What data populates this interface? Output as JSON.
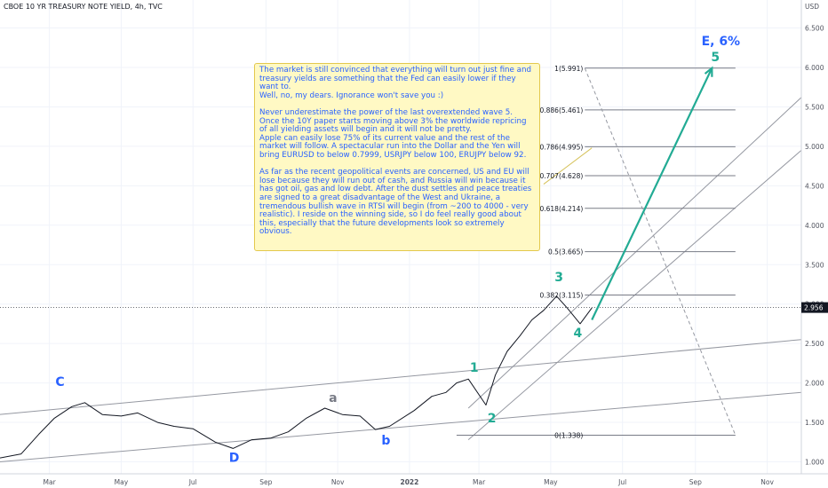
{
  "header": {
    "title": "CBOE 10 YR TREASURY NOTE YIELD, 4h, TVC"
  },
  "price_axis": {
    "currency": "USD",
    "ticks": [
      "6.500",
      "6.000",
      "5.500",
      "5.000",
      "4.500",
      "4.000",
      "3.500",
      "3.000",
      "2.500",
      "2.000",
      "1.500",
      "1.000"
    ],
    "current_price": "2.956"
  },
  "time_axis": {
    "labels": [
      "Mar",
      "May",
      "Jul",
      "Sep",
      "Nov",
      "2022",
      "Mar",
      "May",
      "Jul",
      "Sep",
      "Nov"
    ]
  },
  "note": {
    "text": "The market is still convinced that everything will turn out just fine and treasury yields are something that the Fed can easily lower if they want to.\nWell, no, my dears. Ignorance won't save you :)\n\nNever underestimate the power of the last overextended wave 5. Once the 10Y paper starts moving above 3% the worldwide repricing of all yielding assets will begin and it will not be pretty.\nApple can easily lose 75% of its current value and the rest of the market will follow. A spectacular run into the Dollar and the Yen will bring EURUSD to below 0.7999, USRJPY below 100, ERUJPY below 92.\n\nAs far as the recent geopolitical events are concerned, US and EU will lose because they will run out of cash, and Russia will win because it has got oil, gas and low debt. After the dust settles and peace treaties are signed to a great disadvantage of the West and Ukraine, a tremendous bullish wave in RTSI will begin (from ~200 to 4000 - very realistic). I reside on the winning side, so I do feel really good about this, especially that the future developments look so extremely obvious."
  },
  "target_label": "E, 6%",
  "fib_levels": [
    {
      "ratio": "1",
      "label": "1(5.991)",
      "value": 5.991
    },
    {
      "ratio": "0.886",
      "label": "0.886(5.461)",
      "value": 5.461
    },
    {
      "ratio": "0.786",
      "label": "0.786(4.995)",
      "value": 4.995
    },
    {
      "ratio": "0.707",
      "label": "0.707(4.628)",
      "value": 4.628
    },
    {
      "ratio": "0.618",
      "label": "0.618(4.214)",
      "value": 4.214
    },
    {
      "ratio": "0.5",
      "label": "0.5(3.665)",
      "value": 3.665
    },
    {
      "ratio": "0.382",
      "label": "0.382(3.115)",
      "value": 3.115
    },
    {
      "ratio": "0",
      "label": "0(1.338)",
      "value": 1.338
    }
  ],
  "wave_labels": [
    {
      "text": "C",
      "color": "#2a62ff"
    },
    {
      "text": "D",
      "color": "#2a62ff"
    },
    {
      "text": "a",
      "color": "#787b86"
    },
    {
      "text": "b",
      "color": "#2a62ff"
    },
    {
      "text": "1",
      "color": "#22ab94"
    },
    {
      "text": "2",
      "color": "#22ab94"
    },
    {
      "text": "3",
      "color": "#22ab94"
    },
    {
      "text": "4",
      "color": "#22ab94"
    },
    {
      "text": "5",
      "color": "#22ab94"
    }
  ],
  "colors": {
    "price_line": "#131722",
    "projection": "#22ab94",
    "channel": "#9598a1",
    "note_bg": "#fff9c4",
    "note_text": "#2962ff"
  },
  "chart_data": {
    "type": "line",
    "title": "CBOE 10 YR TREASURY NOTE YIELD, 4h, TVC",
    "xlabel": "",
    "ylabel": "USD",
    "ylim": [
      0.9,
      6.9
    ],
    "x_range": [
      "2021-01-18",
      "2022-11-30"
    ],
    "grid": true,
    "series": [
      {
        "x": [
          "2021-01-18",
          "2021-02-05",
          "2021-02-20",
          "2021-03-05",
          "2021-03-20",
          "2021-03-31",
          "2021-04-15",
          "2021-05-01",
          "2021-05-15",
          "2021-06-01",
          "2021-06-15",
          "2021-07-01",
          "2021-07-20",
          "2021-08-04",
          "2021-08-20",
          "2021-09-05",
          "2021-09-20",
          "2021-10-05",
          "2021-10-21",
          "2021-11-05",
          "2021-11-20",
          "2021-12-03",
          "2021-12-15",
          "2022-01-05",
          "2022-01-20",
          "2022-02-01",
          "2022-02-10",
          "2022-02-20",
          "2022-03-07",
          "2022-03-15",
          "2022-03-25",
          "2022-04-05",
          "2022-04-15",
          "2022-04-25",
          "2022-05-06",
          "2022-05-15",
          "2022-05-26",
          "2022-06-05"
        ],
        "values": [
          1.05,
          1.1,
          1.35,
          1.55,
          1.7,
          1.75,
          1.6,
          1.58,
          1.62,
          1.5,
          1.45,
          1.42,
          1.25,
          1.17,
          1.28,
          1.3,
          1.38,
          1.55,
          1.68,
          1.6,
          1.58,
          1.41,
          1.45,
          1.65,
          1.83,
          1.88,
          2.0,
          2.05,
          1.72,
          2.1,
          2.4,
          2.6,
          2.8,
          2.92,
          3.1,
          2.95,
          2.75,
          2.95
        ]
      }
    ],
    "projection": {
      "from": {
        "x": "2022-06-05",
        "y": 2.8
      },
      "to": {
        "x": "2022-09-15",
        "y": 5.991
      },
      "label": "5"
    }
  }
}
